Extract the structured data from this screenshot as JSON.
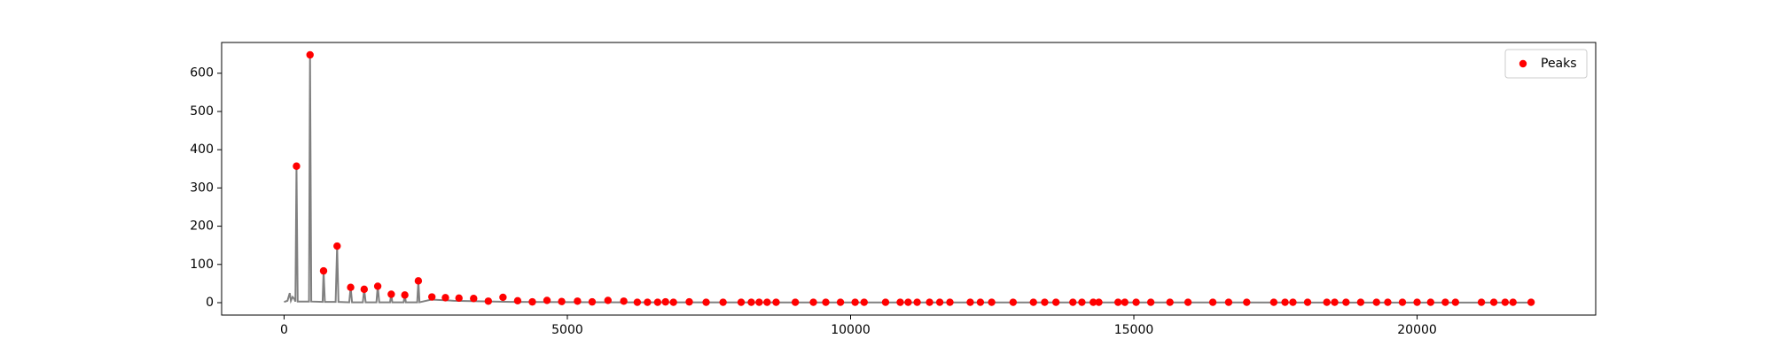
{
  "chart_data": {
    "type": "line",
    "series": [
      {
        "style": "line",
        "color": "#808080",
        "x": [
          0,
          60,
          100,
          120,
          150,
          180,
          200,
          219,
          240,
          440,
          458,
          480,
          680,
          697,
          720,
          910,
          936,
          960,
          1150,
          1175,
          1200,
          1390,
          1414,
          1440,
          1630,
          1653,
          1680,
          1870,
          1892,
          1910,
          2110,
          2131,
          2150,
          2350,
          2370,
          2390,
          2600,
          3000,
          4000,
          6000,
          10000,
          15000,
          22050
        ],
        "values": [
          2,
          5,
          25,
          5,
          15,
          10,
          3,
          357,
          3,
          3,
          648,
          3,
          2,
          83,
          2,
          2,
          148,
          2,
          1,
          40,
          1,
          1,
          35,
          1,
          1,
          43,
          1,
          1,
          22,
          1,
          1,
          20,
          1,
          1,
          57,
          1,
          8,
          5,
          2,
          1,
          0.5,
          0.5,
          0.3
        ]
      },
      {
        "style": "markers",
        "name": "Peaks",
        "color": "#ff0000",
        "x": [
          219,
          458,
          697,
          936,
          1175,
          1414,
          1653,
          1892,
          2131,
          2370,
          2609,
          2848,
          3087,
          3346,
          3605,
          3864,
          4123,
          4382,
          4641,
          4900,
          5179,
          5438,
          5717,
          5996,
          6235,
          6414,
          6594,
          6733,
          6873,
          7152,
          7450,
          7749,
          8068,
          8247,
          8386,
          8526,
          8685,
          9024,
          9343,
          9562,
          9821,
          10080,
          10239,
          10617,
          10876,
          11016,
          11175,
          11394,
          11574,
          11753,
          12112,
          12291,
          12490,
          12869,
          13227,
          13426,
          13625,
          13924,
          14083,
          14283,
          14382,
          14721,
          14840,
          15040,
          15299,
          15637,
          15956,
          16394,
          16673,
          16992,
          17470,
          17669,
          17808,
          18067,
          18406,
          18545,
          18745,
          19004,
          19283,
          19482,
          19741,
          20000,
          20239,
          20498,
          20677,
          21135,
          21354,
          21554,
          21693,
          22012
        ],
        "values": [
          357,
          648,
          83,
          148,
          40,
          35,
          43,
          22,
          20,
          57,
          15,
          13,
          12,
          11,
          4,
          14,
          5,
          2,
          6,
          3,
          4,
          2,
          6,
          4,
          1,
          1,
          1,
          2,
          1,
          2,
          1,
          1,
          1,
          1,
          1,
          1,
          1,
          1,
          1,
          1,
          1,
          1,
          1,
          1,
          1,
          1,
          1,
          1,
          1,
          1,
          1,
          1,
          1,
          1,
          1,
          1,
          1,
          1,
          1,
          1,
          1,
          1,
          1,
          1,
          1,
          1,
          1,
          1,
          1,
          1,
          1,
          1,
          1,
          1,
          1,
          1,
          1,
          1,
          1,
          1,
          1,
          1,
          1,
          1,
          1,
          1,
          1,
          1,
          1,
          1
        ]
      }
    ],
    "xlim": [
      -1102.5,
      23152.5
    ],
    "xticks": [
      0,
      5000,
      10000,
      15000,
      20000
    ],
    "ylim": [
      -32.4,
      680.4
    ],
    "yticks": [
      0,
      100,
      200,
      300,
      400,
      500,
      600
    ],
    "legend": "upper right"
  }
}
